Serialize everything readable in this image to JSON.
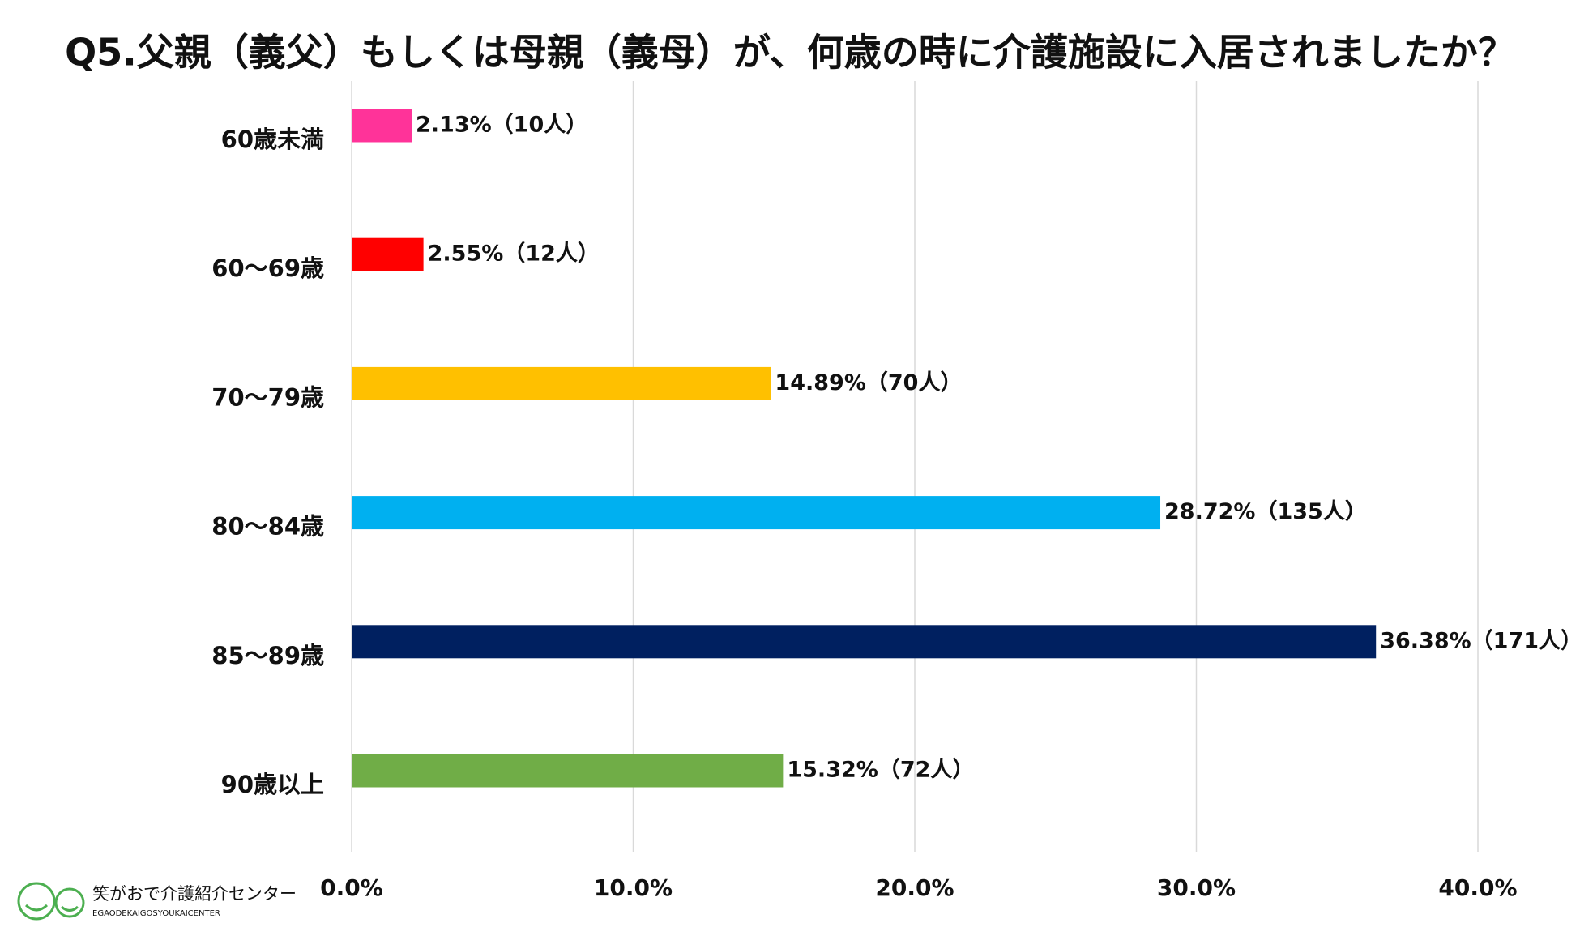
{
  "chart_data": {
    "type": "bar",
    "orientation": "horizontal",
    "title": "Q5.父親（義父）もしくは母親（義母）が、何歳の時に介護施設に入居されましたか？",
    "categories": [
      "60歳未満",
      "60〜69歳",
      "70〜79歳",
      "80〜84歳",
      "85〜89歳",
      "90歳以上"
    ],
    "values": [
      2.13,
      2.55,
      14.89,
      28.72,
      36.38,
      15.32
    ],
    "value_labels": [
      "2.13%（10人）",
      "2.55%（12人）",
      "14.89%（70人）",
      "28.72%（135人）",
      "36.38%（171人）",
      "15.32%（72人）"
    ],
    "colors": [
      "#ff3399",
      "#ff0000",
      "#ffc000",
      "#00b0f0",
      "#002060",
      "#70ad47"
    ],
    "xlim": [
      0,
      40
    ],
    "xticks": [
      {
        "value": 0,
        "label": "0.0%"
      },
      {
        "value": 10,
        "label": "10.0%"
      },
      {
        "value": 20,
        "label": "20.0%"
      },
      {
        "value": 30,
        "label": "30.0%"
      },
      {
        "value": 40,
        "label": "40.0%"
      }
    ],
    "grid": true
  },
  "logo": {
    "name": "笑がおで介護紹介センター",
    "roman": "EGAODEKAIGOSYOUKAICENTER"
  }
}
